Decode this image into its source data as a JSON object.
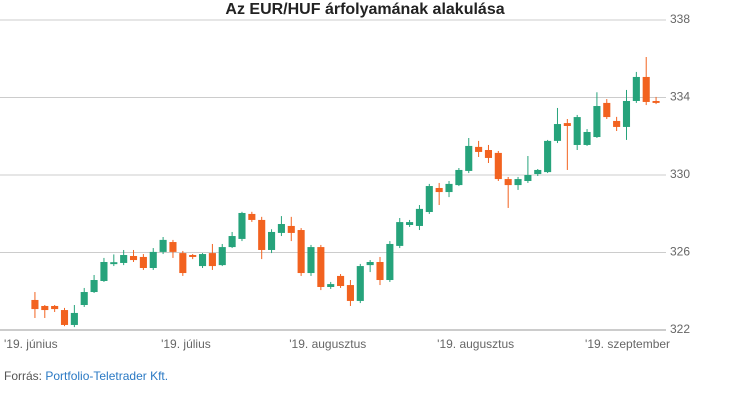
{
  "chart_data": {
    "type": "candlestick",
    "title": "Az EUR/HUF árfolyamának alakulása",
    "categories": [
      "'19. június",
      null,
      null,
      null,
      null,
      null,
      null,
      null,
      null,
      null,
      null,
      null,
      null,
      "'19. július",
      null,
      null,
      null,
      null,
      null,
      null,
      null,
      null,
      null,
      null,
      null,
      null,
      "'19. augusztus",
      null,
      null,
      null,
      null,
      null,
      null,
      null,
      null,
      null,
      null,
      null,
      null,
      null,
      null,
      "'19. augusztus",
      null,
      null,
      null,
      null,
      null,
      null,
      null,
      null,
      null,
      null,
      null,
      null,
      null,
      null,
      "'19. szeptember",
      null,
      null,
      null,
      null,
      null,
      null,
      null
    ],
    "open": [
      323.55,
      323.24,
      323.24,
      323.03,
      322.26,
      323.29,
      323.96,
      324.53,
      325.4,
      325.46,
      325.82,
      325.77,
      325.2,
      326.03,
      326.54,
      325.97,
      325.87,
      325.3,
      325.97,
      325.35,
      326.28,
      326.7,
      327.99,
      327.68,
      326.13,
      327.01,
      327.37,
      327.16,
      324.94,
      326.28,
      324.22,
      324.79,
      324.32,
      323.5,
      325.35,
      325.51,
      324.58,
      326.34,
      327.42,
      327.37,
      328.09,
      329.33,
      329.12,
      329.48,
      330.21,
      331.45,
      331.29,
      331.14,
      329.79,
      329.48,
      329.69,
      330.05,
      330.15,
      331.76,
      332.68,
      331.55,
      331.55,
      331.96,
      333.72,
      332.79,
      332.48,
      333.82,
      335.06,
      333.82
    ],
    "high": [
      323.96,
      323.29,
      323.29,
      323.14,
      323.29,
      324.17,
      324.84,
      325.72,
      325.9,
      326.13,
      326.13,
      325.92,
      326.23,
      326.8,
      326.65,
      326.08,
      325.92,
      325.97,
      326.44,
      326.44,
      327.06,
      328.1,
      328.1,
      327.84,
      327.2,
      327.88,
      327.84,
      327.26,
      326.39,
      326.39,
      324.48,
      324.89,
      324.58,
      325.41,
      325.61,
      325.77,
      326.59,
      327.78,
      327.68,
      328.45,
      329.54,
      329.59,
      329.69,
      330.36,
      331.91,
      331.76,
      331.55,
      331.24,
      329.9,
      329.9,
      330.98,
      330.31,
      331.81,
      333.46,
      332.89,
      333.1,
      332.37,
      334.27,
      333.92,
      333.0,
      334.39,
      335.32,
      336.09,
      334.03
    ],
    "low": [
      322.62,
      322.62,
      322.93,
      322.2,
      322.15,
      323.19,
      323.91,
      324.48,
      325.3,
      325.35,
      325.51,
      325.1,
      325.1,
      325.92,
      325.72,
      324.79,
      325.66,
      325.2,
      325.1,
      325.3,
      326.23,
      326.59,
      327.58,
      325.66,
      325.97,
      326.85,
      326.59,
      324.79,
      324.79,
      324.06,
      324.12,
      324.17,
      323.24,
      323.39,
      324.99,
      324.32,
      324.48,
      326.23,
      327.32,
      327.16,
      327.99,
      328.45,
      328.86,
      329.43,
      330.1,
      330.93,
      330.62,
      329.69,
      328.3,
      329.23,
      329.59,
      329.95,
      330.1,
      331.65,
      330.26,
      331.29,
      331.5,
      331.91,
      332.89,
      332.27,
      331.81,
      333.72,
      333.61,
      333.66
    ],
    "close": [
      323.08,
      323.03,
      323.08,
      322.26,
      322.88,
      323.96,
      324.58,
      325.51,
      325.5,
      325.87,
      325.61,
      325.2,
      326.03,
      326.65,
      326.03,
      324.94,
      325.77,
      325.92,
      325.3,
      326.28,
      326.85,
      328.04,
      327.68,
      326.13,
      327.06,
      327.47,
      327.01,
      324.94,
      326.28,
      324.22,
      324.37,
      324.27,
      323.5,
      325.3,
      325.51,
      324.58,
      326.44,
      327.57,
      327.57,
      328.25,
      329.43,
      329.12,
      329.54,
      330.26,
      331.5,
      331.19,
      330.88,
      329.79,
      329.48,
      329.79,
      330.0,
      330.26,
      331.76,
      332.63,
      332.53,
      332.99,
      332.22,
      333.56,
      332.99,
      332.48,
      333.82,
      335.06,
      333.77,
      333.72
    ],
    "up_color": "#26a37b",
    "down_color": "#f2621f",
    "ylim": [
      322,
      338
    ],
    "yticks": [
      322,
      326,
      330,
      334,
      338
    ],
    "grid": true
  },
  "footer": {
    "label": "Forrás:",
    "source": "Portfolio-Teletrader Kft."
  }
}
